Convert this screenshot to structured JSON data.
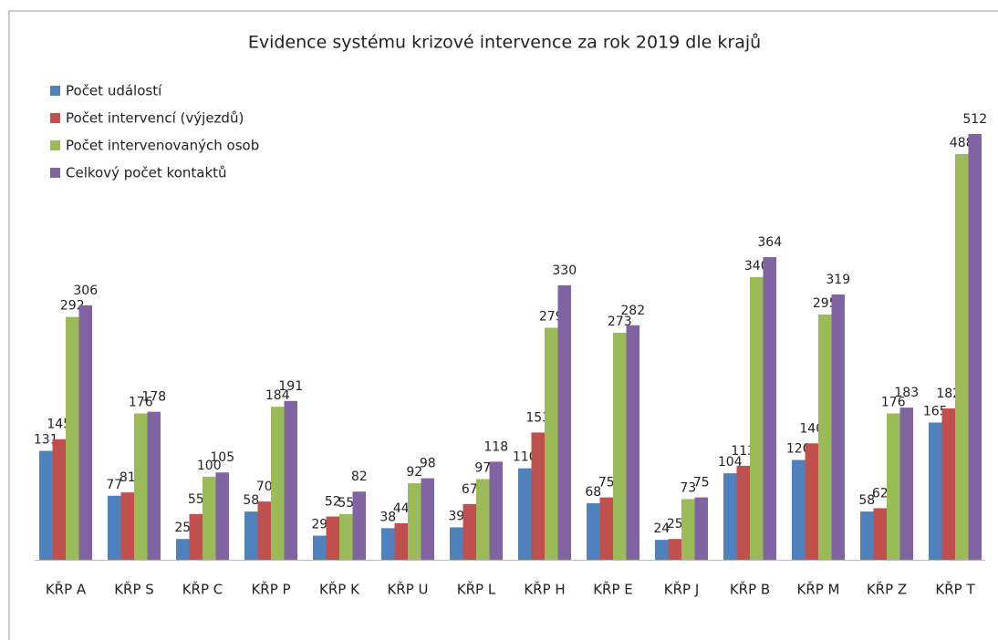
{
  "chart_data": {
    "type": "bar",
    "title": "Evidence systému krizové intervence za rok 2019 dle krajů",
    "categories": [
      "KŘP A",
      "KŘP S",
      "KŘP C",
      "KŘP P",
      "KŘP K",
      "KŘP U",
      "KŘP L",
      "KŘP H",
      "KŘP E",
      "KŘP J",
      "KŘP B",
      "KŘP M",
      "KŘP Z",
      "KŘP T"
    ],
    "series": [
      {
        "name": "Počet událostí",
        "color": "#4f81bd",
        "values": [
          131,
          77,
          25,
          58,
          29,
          38,
          39,
          110,
          68,
          24,
          104,
          120,
          58,
          165
        ]
      },
      {
        "name": "Počet intervencí (výjezdů)",
        "color": "#c0504d",
        "values": [
          145,
          81,
          55,
          70,
          52,
          44,
          67,
          153,
          75,
          25,
          113,
          140,
          62,
          182
        ]
      },
      {
        "name": "Počet intervenovaných osob",
        "color": "#9bbb59",
        "values": [
          292,
          176,
          100,
          184,
          55,
          92,
          97,
          279,
          273,
          73,
          340,
          295,
          176,
          488
        ]
      },
      {
        "name": "Celkový počet kontaktů",
        "color": "#8064a2",
        "values": [
          306,
          178,
          105,
          191,
          82,
          98,
          118,
          330,
          282,
          75,
          364,
          319,
          183,
          512
        ]
      }
    ],
    "legend": "upper left"
  }
}
